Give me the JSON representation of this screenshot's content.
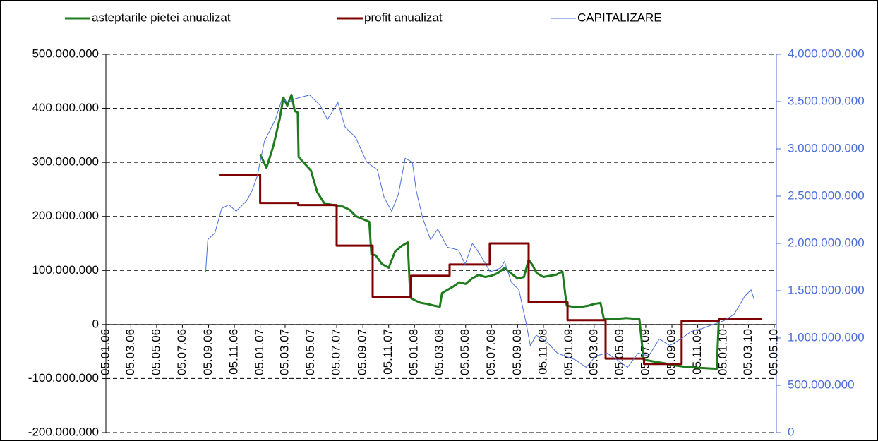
{
  "chart_data": {
    "type": "line",
    "xlim": [
      "05.01.06",
      "05.05.10"
    ],
    "xticks": [
      "05.01.06",
      "05.03.06",
      "05.05.06",
      "05.07.06",
      "05.09.06",
      "05.11.06",
      "05.01.07",
      "05.03.07",
      "05.05.07",
      "05.07.07",
      "05.09.07",
      "05.11.07",
      "05.01.08",
      "05.03.08",
      "05.05.08",
      "05.07.08",
      "05.09.08",
      "05.11.08",
      "05.01.09",
      "05.03.09",
      "05.05.09",
      "05.07.09",
      "05.09.09",
      "05.11.09",
      "05.01.10",
      "05.03.10",
      "05.05.10"
    ],
    "ylim": [
      -200000000,
      500000000
    ],
    "yticks": [
      {
        "value": -200000000,
        "label": "-200.000.000"
      },
      {
        "value": -100000000,
        "label": "-100.000.000"
      },
      0,
      {
        "value": 100000000,
        "label": "100.000.000"
      },
      {
        "value": 200000000,
        "label": "200.000.000"
      },
      {
        "value": 300000000,
        "label": "300.000.000"
      },
      {
        "value": 400000000,
        "label": "400.000.000"
      },
      {
        "value": 500000000,
        "label": "500.000.000"
      }
    ],
    "y2lim": [
      0,
      4000000000
    ],
    "y2ticks": [
      0,
      {
        "value": 500000000,
        "label": "500.000.000"
      },
      {
        "value": 1000000000,
        "label": "1.000.000.000"
      },
      {
        "value": 1500000000,
        "label": "1.500.000.000"
      },
      {
        "value": 2000000000,
        "label": "2.000.000.000"
      },
      {
        "value": 2500000000,
        "label": "2.500.000.000"
      },
      {
        "value": 3000000000,
        "label": "3.000.000.000"
      },
      {
        "value": 3500000000,
        "label": "3.500.000.000"
      },
      {
        "value": 4000000000,
        "label": "4.000.000.000"
      }
    ],
    "grid": true,
    "legend": "top",
    "series": [
      {
        "name": "asteptarile pietei anualizat",
        "color": "#1e7b1e",
        "x": [
          "05.01.07",
          "20.01.07",
          "05.02.07",
          "20.02.07",
          "01.03.07",
          "10.03.07",
          "20.03.07",
          "28.03.07",
          "04.04.07",
          "06.04.07",
          "20.04.07",
          "05.05.07",
          "20.05.07",
          "05.06.07",
          "20.06.07",
          "05.07.07",
          "20.07.07",
          "05.08.07",
          "20.08.07",
          "05.09.07",
          "20.09.07",
          "25.09.07",
          "05.10.07",
          "20.10.07",
          "05.11.07",
          "20.11.07",
          "05.12.07",
          "20.12.07",
          "26.12.07",
          "05.01.08",
          "20.01.08",
          "05.02.08",
          "20.02.08",
          "05.03.08",
          "10.03.08",
          "25.03.08",
          "05.04.08",
          "20.04.08",
          "05.05.08",
          "20.05.08",
          "05.06.08",
          "20.06.08",
          "05.07.08",
          "20.07.08",
          "05.08.08",
          "20.08.08",
          "05.09.08",
          "20.09.08",
          "01.10.08",
          "10.10.08",
          "20.10.08",
          "05.11.08",
          "20.11.08",
          "05.12.08",
          "20.12.08",
          "30.12.08",
          "20.01.09",
          "05.02.09",
          "20.02.09",
          "05.03.09",
          "20.03.09",
          "28.03.09",
          "20.04.09",
          "20.05.09",
          "20.06.09",
          "30.06.09",
          "20.07.09",
          "05.08.09",
          "20.08.09",
          "05.09.09",
          "05.10.09",
          "05.11.09",
          "20.12.09",
          "25.12.09",
          "15.01.10"
        ],
        "values": [
          315000000,
          290000000,
          330000000,
          380000000,
          420000000,
          405000000,
          425000000,
          395000000,
          392000000,
          310000000,
          298000000,
          285000000,
          245000000,
          225000000,
          222000000,
          220000000,
          218000000,
          212000000,
          200000000,
          195000000,
          190000000,
          130000000,
          128000000,
          112000000,
          105000000,
          135000000,
          145000000,
          152000000,
          50000000,
          45000000,
          40000000,
          38000000,
          35000000,
          33000000,
          58000000,
          65000000,
          70000000,
          78000000,
          75000000,
          85000000,
          92000000,
          88000000,
          90000000,
          95000000,
          105000000,
          95000000,
          85000000,
          88000000,
          120000000,
          110000000,
          95000000,
          88000000,
          90000000,
          92000000,
          98000000,
          35000000,
          32000000,
          33000000,
          35000000,
          38000000,
          40000000,
          10000000,
          10000000,
          12000000,
          10000000,
          -65000000,
          -68000000,
          -70000000,
          -72000000,
          -75000000,
          -78000000,
          -80000000,
          -82000000,
          10000000,
          10000000
        ]
      },
      {
        "name": "profit anualizat",
        "color": "#7f0000",
        "step": true,
        "x": [
          "01.10.06",
          "05.01.07",
          "05.04.07",
          "05.07.07",
          "28.09.07",
          "28.12.07",
          "28.03.08",
          "01.07.08",
          "01.10.08",
          "01.01.09",
          "01.04.09",
          "01.07.09",
          "28.09.09",
          "25.12.09",
          "05.04.10"
        ],
        "values": [
          277000000,
          225000000,
          221000000,
          146000000,
          51000000,
          90000000,
          111000000,
          150000000,
          41000000,
          8000000,
          -63000000,
          -73000000,
          7000000,
          10000000,
          10000000
        ]
      },
      {
        "name": "CAPITALIZARE",
        "color": "#4a6fd9",
        "axis": "y2",
        "x": [
          "29.08.06",
          "03.09.06",
          "20.09.06",
          "06.10.06",
          "23.10.06",
          "09.11.06",
          "04.12.06",
          "17.12.06",
          "29.12.06",
          "15.01.07",
          "10.02.07",
          "26.02.07",
          "13.03.07",
          "29.03.07",
          "02.05.07",
          "27.05.07",
          "13.06.07",
          "08.07.07",
          "25.07.07",
          "19.08.07",
          "14.09.07",
          "09.10.07",
          "25.10.07",
          "12.11.07",
          "28.11.07",
          "14.12.07",
          "31.12.07",
          "09.01.08",
          "25.01.08",
          "12.02.08",
          "29.02.08",
          "23.03.08",
          "18.04.08",
          "04.05.08",
          "21.05.08",
          "07.06.08",
          "02.07.08",
          "27.07.08",
          "05.08.08",
          "21.08.08",
          "08.09.08",
          "24.09.08",
          "05.10.08",
          "19.10.08",
          "13.11.08",
          "08.12.08",
          "25.12.08",
          "19.01.09",
          "14.02.09",
          "09.03.09",
          "04.04.09",
          "28.04.09",
          "23.05.09",
          "17.06.09",
          "12.07.09",
          "06.08.09",
          "31.08.09",
          "26.09.09",
          "21.10.09",
          "15.11.09",
          "10.12.09",
          "05.01.10",
          "30.01.10",
          "24.02.10",
          "11.03.10",
          "19.03.10"
        ],
        "values": [
          1700000000,
          2040000000,
          2110000000,
          2370000000,
          2410000000,
          2340000000,
          2450000000,
          2560000000,
          2710000000,
          3080000000,
          3310000000,
          3530000000,
          3490000000,
          3530000000,
          3570000000,
          3460000000,
          3310000000,
          3490000000,
          3230000000,
          3120000000,
          2860000000,
          2780000000,
          2490000000,
          2340000000,
          2520000000,
          2900000000,
          2860000000,
          2560000000,
          2260000000,
          2040000000,
          2150000000,
          1960000000,
          1930000000,
          1780000000,
          2000000000,
          1890000000,
          1700000000,
          1740000000,
          1810000000,
          1590000000,
          1510000000,
          1180000000,
          920000000,
          1030000000,
          960000000,
          840000000,
          810000000,
          770000000,
          690000000,
          810000000,
          840000000,
          770000000,
          690000000,
          840000000,
          810000000,
          990000000,
          920000000,
          990000000,
          1070000000,
          1100000000,
          1140000000,
          1180000000,
          1250000000,
          1440000000,
          1510000000,
          1400000000
        ]
      }
    ]
  }
}
